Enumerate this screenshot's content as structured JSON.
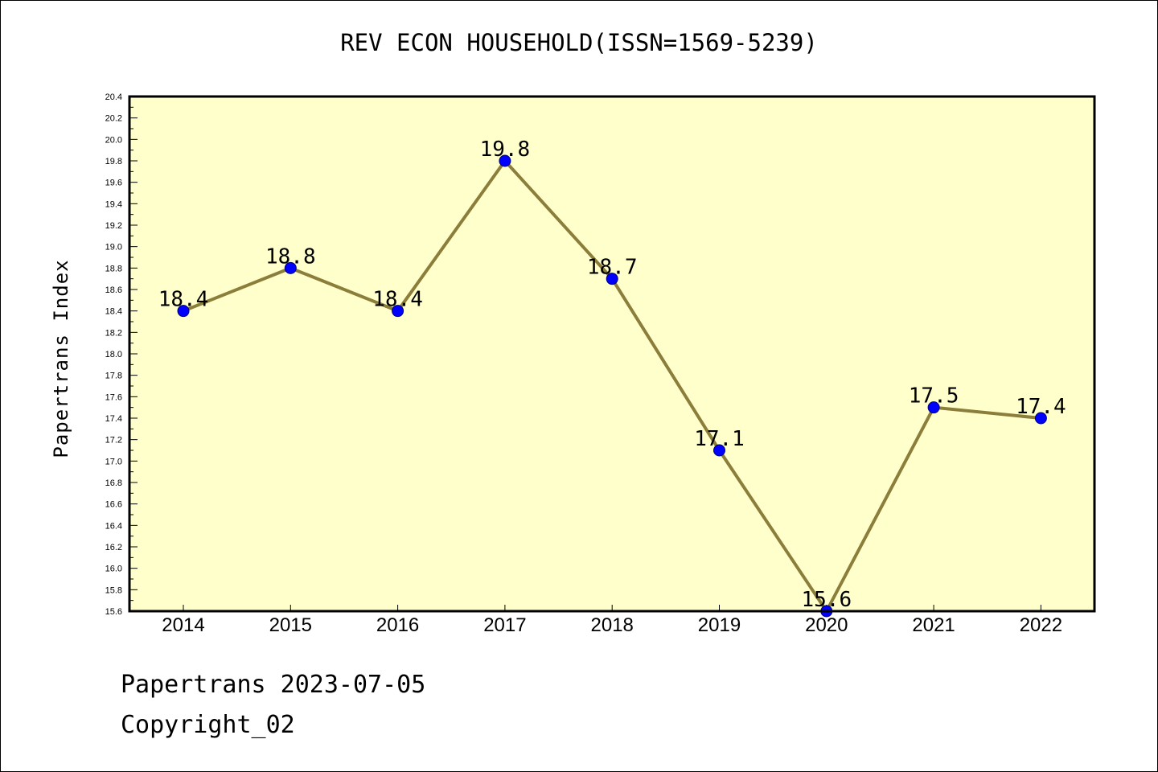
{
  "chart_data": {
    "type": "line",
    "title": "REV ECON HOUSEHOLD(ISSN=1569-5239)",
    "xlabel": "",
    "ylabel": "Papertrans Index",
    "categories": [
      "2014",
      "2015",
      "2016",
      "2017",
      "2018",
      "2019",
      "2020",
      "2021",
      "2022"
    ],
    "series": [
      {
        "values": [
          18.4,
          18.8,
          18.4,
          19.8,
          18.7,
          17.1,
          15.6,
          17.5,
          17.4
        ],
        "data_labels": [
          "18.4",
          "18.8",
          "18.4",
          "19.8",
          "18.7",
          "17.1",
          "15.6",
          "17.5",
          "17.4"
        ]
      }
    ],
    "ylim": [
      15.6,
      20.4
    ],
    "y_major_step": 0.2,
    "y_minor_step": 0.1,
    "y_tick_labels": [
      "15.6",
      "15.8",
      "16.0",
      "16.2",
      "16.4",
      "16.6",
      "16.8",
      "17.0",
      "17.2",
      "17.4",
      "17.6",
      "17.8",
      "18.0",
      "18.2",
      "18.4",
      "18.6",
      "18.8",
      "19.0",
      "19.2",
      "19.4",
      "19.6",
      "19.8",
      "20.0",
      "20.2",
      "20.4"
    ],
    "grid": false,
    "legend": "none",
    "colors": {
      "plot_background": "#ffffcc",
      "line": "#8b7d3a",
      "marker": "#0000ff"
    }
  },
  "footer": {
    "line1": "Papertrans 2023-07-05",
    "line2": "Copyright_02"
  }
}
